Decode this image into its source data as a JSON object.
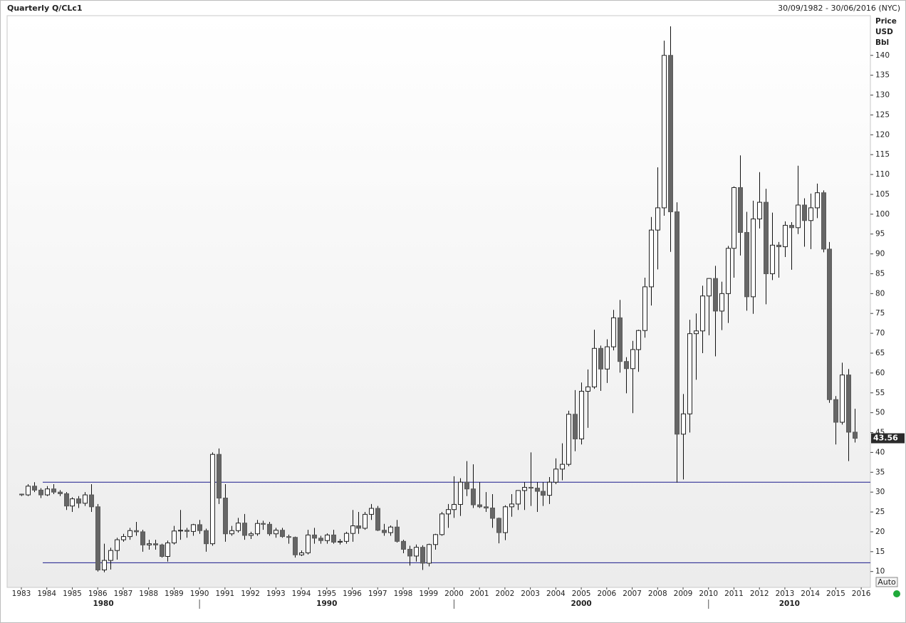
{
  "chart_data": {
    "type": "candlestick",
    "title": "Quarterly Q/CLc1",
    "subtitle": "30/09/1982 - 30/06/2016 (NYC)",
    "y_axis_label": [
      "Price",
      "USD",
      "Bbl"
    ],
    "button": "Auto",
    "xlim": [
      1982.44,
      2016.36
    ],
    "xticks": [
      1983,
      1984,
      1985,
      1986,
      1987,
      1988,
      1989,
      1990,
      1991,
      1992,
      1993,
      1994,
      1995,
      1996,
      1997,
      1998,
      1999,
      2000,
      2001,
      2002,
      2003,
      2004,
      2005,
      2006,
      2007,
      2008,
      2009,
      2010,
      2011,
      2012,
      2013,
      2014,
      2015,
      2016
    ],
    "decades": [
      1980,
      1990,
      2000,
      2010
    ],
    "ylim": [
      6,
      150
    ],
    "yticks": [
      10,
      15,
      20,
      25,
      30,
      35,
      40,
      45,
      50,
      55,
      60,
      65,
      70,
      75,
      80,
      85,
      90,
      95,
      100,
      105,
      110,
      115,
      120,
      125,
      130,
      135,
      140
    ],
    "grid": false,
    "up_color": "#ffffff",
    "down_color": "#666666",
    "line_color": "#1a1a8c",
    "hlines": [
      32.5,
      12.2
    ],
    "x": [
      1983,
      1983.25,
      1983.5,
      1983.75,
      1984,
      1984.25,
      1984.5,
      1984.75,
      1985,
      1985.25,
      1985.5,
      1985.75,
      1986,
      1986.25,
      1986.5,
      1986.75,
      1987,
      1987.25,
      1987.5,
      1987.75,
      1988,
      1988.25,
      1988.5,
      1988.75,
      1989,
      1989.25,
      1989.5,
      1989.75,
      1990,
      1990.25,
      1990.5,
      1990.75,
      1991,
      1991.25,
      1991.5,
      1991.75,
      1992,
      1992.25,
      1992.5,
      1992.75,
      1993,
      1993.25,
      1993.5,
      1993.75,
      1994,
      1994.25,
      1994.5,
      1994.75,
      1995,
      1995.25,
      1995.5,
      1995.75,
      1996,
      1996.25,
      1996.5,
      1996.75,
      1997,
      1997.25,
      1997.5,
      1997.75,
      1998,
      1998.25,
      1998.5,
      1998.75,
      1999,
      1999.25,
      1999.5,
      1999.75,
      2000,
      2000.25,
      2000.5,
      2000.75,
      2001,
      2001.25,
      2001.5,
      2001.75,
      2002,
      2002.25,
      2002.5,
      2002.75,
      2003,
      2003.25,
      2003.5,
      2003.75,
      2004,
      2004.25,
      2004.5,
      2004.75,
      2005,
      2005.25,
      2005.5,
      2005.75,
      2006,
      2006.25,
      2006.5,
      2006.75,
      2007,
      2007.25,
      2007.5,
      2007.75,
      2008,
      2008.25,
      2008.5,
      2008.75,
      2009,
      2009.25,
      2009.5,
      2009.75,
      2010,
      2010.25,
      2010.5,
      2010.75,
      2011,
      2011.25,
      2011.5,
      2011.75,
      2012,
      2012.25,
      2012.5,
      2012.75,
      2013,
      2013.25,
      2013.5,
      2013.75,
      2014,
      2014.25,
      2014.5,
      2014.75,
      2015,
      2015.25,
      2015.5,
      2015.75
    ],
    "ohlc": [
      [
        29.5,
        29.6,
        29.0,
        29.3
      ],
      [
        29.3,
        32,
        29,
        31.5
      ],
      [
        31.5,
        32.5,
        30,
        30.5
      ],
      [
        30.5,
        31,
        28.5,
        29.3
      ],
      [
        29.3,
        31.5,
        29,
        30.8
      ],
      [
        30.8,
        32,
        29.5,
        30
      ],
      [
        30,
        30.5,
        29,
        29.6
      ],
      [
        29.6,
        30,
        25.5,
        26.5
      ],
      [
        26.5,
        28.7,
        25,
        28.3
      ],
      [
        28.3,
        29,
        26,
        27.2
      ],
      [
        27.2,
        30,
        26.5,
        29.3
      ],
      [
        29.3,
        32,
        25,
        26.3
      ],
      [
        26.3,
        27,
        10,
        10.4
      ],
      [
        10.4,
        17,
        9.8,
        12.8
      ],
      [
        12.8,
        16,
        10.5,
        15.3
      ],
      [
        15.3,
        18.5,
        13,
        18
      ],
      [
        18,
        19.5,
        17.5,
        18.8
      ],
      [
        18.8,
        21,
        18,
        20.3
      ],
      [
        20.3,
        22.5,
        19,
        20
      ],
      [
        20,
        20.5,
        15,
        16.7
      ],
      [
        16.7,
        18,
        15.5,
        17
      ],
      [
        17,
        18,
        15.5,
        16.7
      ],
      [
        16.7,
        17,
        13.5,
        13.8
      ],
      [
        13.8,
        17.8,
        12.5,
        17.2
      ],
      [
        17.2,
        21.5,
        16.8,
        20.2
      ],
      [
        20.2,
        25.5,
        18,
        20.4
      ],
      [
        20.4,
        21,
        18.5,
        20.1
      ],
      [
        20.1,
        22,
        19,
        21.8
      ],
      [
        21.8,
        23,
        19.5,
        20.3
      ],
      [
        20.3,
        20.8,
        15,
        17
      ],
      [
        17,
        40,
        16.5,
        39.5
      ],
      [
        39.5,
        41,
        27,
        28.5
      ],
      [
        28.5,
        32,
        17.5,
        19.5
      ],
      [
        19.5,
        21.5,
        19,
        20.3
      ],
      [
        20.3,
        23.5,
        19.8,
        22.2
      ],
      [
        22.2,
        24.5,
        18,
        19.1
      ],
      [
        19.1,
        20,
        18.2,
        19.5
      ],
      [
        19.5,
        23,
        19,
        22.1
      ],
      [
        22.1,
        22.8,
        20.5,
        21.9
      ],
      [
        21.9,
        22.5,
        19,
        19.5
      ],
      [
        19.5,
        21,
        18.5,
        20.4
      ],
      [
        20.4,
        21,
        18.5,
        18.8
      ],
      [
        18.8,
        19.3,
        17,
        18.6
      ],
      [
        18.6,
        18.8,
        13.5,
        14.2
      ],
      [
        14.2,
        15.3,
        13.9,
        14.7
      ],
      [
        14.7,
        20.5,
        14.3,
        19.2
      ],
      [
        19.2,
        21,
        17,
        18.4
      ],
      [
        18.4,
        19,
        17,
        17.8
      ],
      [
        17.8,
        19.6,
        17,
        19.2
      ],
      [
        19.2,
        20.5,
        17,
        17.4
      ],
      [
        17.4,
        18.2,
        16.8,
        17.6
      ],
      [
        17.6,
        20,
        17,
        19.6
      ],
      [
        19.6,
        25.5,
        17.5,
        21.5
      ],
      [
        21.5,
        25,
        19.5,
        20.9
      ],
      [
        20.9,
        25,
        20.5,
        24.4
      ],
      [
        24.4,
        27,
        23,
        25.9
      ],
      [
        25.9,
        26.5,
        20.2,
        20.4
      ],
      [
        20.4,
        22,
        19,
        19.8
      ],
      [
        19.8,
        21.6,
        19,
        21.2
      ],
      [
        21.2,
        23,
        17.3,
        17.6
      ],
      [
        17.6,
        18,
        14.6,
        15.6
      ],
      [
        15.6,
        16.5,
        11.5,
        13.9
      ],
      [
        13.9,
        16.8,
        12.5,
        16.1
      ],
      [
        16.1,
        16.6,
        10.4,
        12.1
      ],
      [
        12.1,
        17,
        11.3,
        16.8
      ],
      [
        16.8,
        19.5,
        15.5,
        19.3
      ],
      [
        19.3,
        25,
        19,
        24.5
      ],
      [
        24.5,
        27,
        21,
        25.6
      ],
      [
        25.6,
        34,
        23.5,
        26.9
      ],
      [
        26.9,
        33.5,
        24,
        32.5
      ],
      [
        32.5,
        37.8,
        29,
        30.8
      ],
      [
        30.8,
        37,
        26,
        26.8
      ],
      [
        26.8,
        32.5,
        26,
        26.3
      ],
      [
        26.3,
        30,
        25,
        26
      ],
      [
        26,
        29.5,
        21,
        23.4
      ],
      [
        23.4,
        23.6,
        17.1,
        19.8
      ],
      [
        19.8,
        26.7,
        17.9,
        26.3
      ],
      [
        26.3,
        29.5,
        23.8,
        27
      ],
      [
        27,
        30.5,
        25.5,
        30.4
      ],
      [
        30.4,
        32.5,
        25.5,
        31.2
      ],
      [
        31.2,
        40,
        26.5,
        31
      ],
      [
        31,
        32.5,
        25,
        30.2
      ],
      [
        30.2,
        32.5,
        26.5,
        29.2
      ],
      [
        29.2,
        33.8,
        27,
        32.5
      ],
      [
        32.5,
        38.5,
        32,
        35.8
      ],
      [
        35.8,
        42.3,
        33,
        37
      ],
      [
        37,
        50.5,
        36.5,
        49.6
      ],
      [
        49.6,
        55.7,
        40.3,
        43.4
      ],
      [
        43.4,
        57.6,
        42,
        55.4
      ],
      [
        55.4,
        60.9,
        46.2,
        56.5
      ],
      [
        56.5,
        70.9,
        56,
        66.2
      ],
      [
        66.2,
        66.9,
        55.5,
        61
      ],
      [
        61,
        68.5,
        57.5,
        66.6
      ],
      [
        66.6,
        75.9,
        65.7,
        73.9
      ],
      [
        73.9,
        78.4,
        60.1,
        62.9
      ],
      [
        62.9,
        64,
        54.9,
        61.1
      ],
      [
        61.1,
        68.1,
        49.9,
        65.9
      ],
      [
        65.9,
        70.9,
        60.3,
        70.7
      ],
      [
        70.7,
        84,
        68.9,
        81.7
      ],
      [
        81.7,
        99.3,
        77,
        96
      ],
      [
        96,
        111.8,
        86.1,
        101.6
      ],
      [
        101.6,
        143.7,
        99.6,
        140
      ],
      [
        140,
        147.3,
        90.5,
        100.6
      ],
      [
        100.6,
        103,
        32.4,
        44.6
      ],
      [
        44.6,
        54.7,
        33.2,
        49.7
      ],
      [
        49.7,
        73.4,
        45,
        69.9
      ],
      [
        69.9,
        75,
        58.3,
        70.6
      ],
      [
        70.6,
        82,
        65,
        79.4
      ],
      [
        79.4,
        83.9,
        69.5,
        83.8
      ],
      [
        83.8,
        87,
        64.2,
        75.6
      ],
      [
        75.6,
        83,
        70.8,
        80
      ],
      [
        80,
        92,
        72.6,
        91.4
      ],
      [
        91.4,
        107,
        84,
        106.7
      ],
      [
        106.7,
        114.8,
        89.6,
        95.4
      ],
      [
        95.4,
        100.6,
        75.7,
        79.2
      ],
      [
        79.2,
        103.4,
        74.9,
        98.8
      ],
      [
        98.8,
        110.6,
        96.4,
        103
      ],
      [
        103,
        106.4,
        77.3,
        85
      ],
      [
        85,
        100.4,
        83.4,
        92.2
      ],
      [
        92.2,
        93,
        84,
        91.8
      ],
      [
        91.8,
        98.2,
        89.2,
        97.2
      ],
      [
        97.2,
        98,
        86,
        96.6
      ],
      [
        96.6,
        112.2,
        95,
        102.3
      ],
      [
        102.3,
        104,
        91.8,
        98.4
      ],
      [
        98.4,
        105.2,
        91.2,
        101.6
      ],
      [
        101.6,
        107.7,
        99,
        105.4
      ],
      [
        105.4,
        106,
        90.4,
        91.2
      ],
      [
        91.2,
        93,
        52.5,
        53.3
      ],
      [
        53.3,
        54.2,
        42,
        47.6
      ],
      [
        47.6,
        62.6,
        47,
        59.5
      ],
      [
        59.5,
        61,
        37.8,
        45.1
      ],
      [
        45.1,
        51,
        42.5,
        43.56
      ]
    ]
  }
}
